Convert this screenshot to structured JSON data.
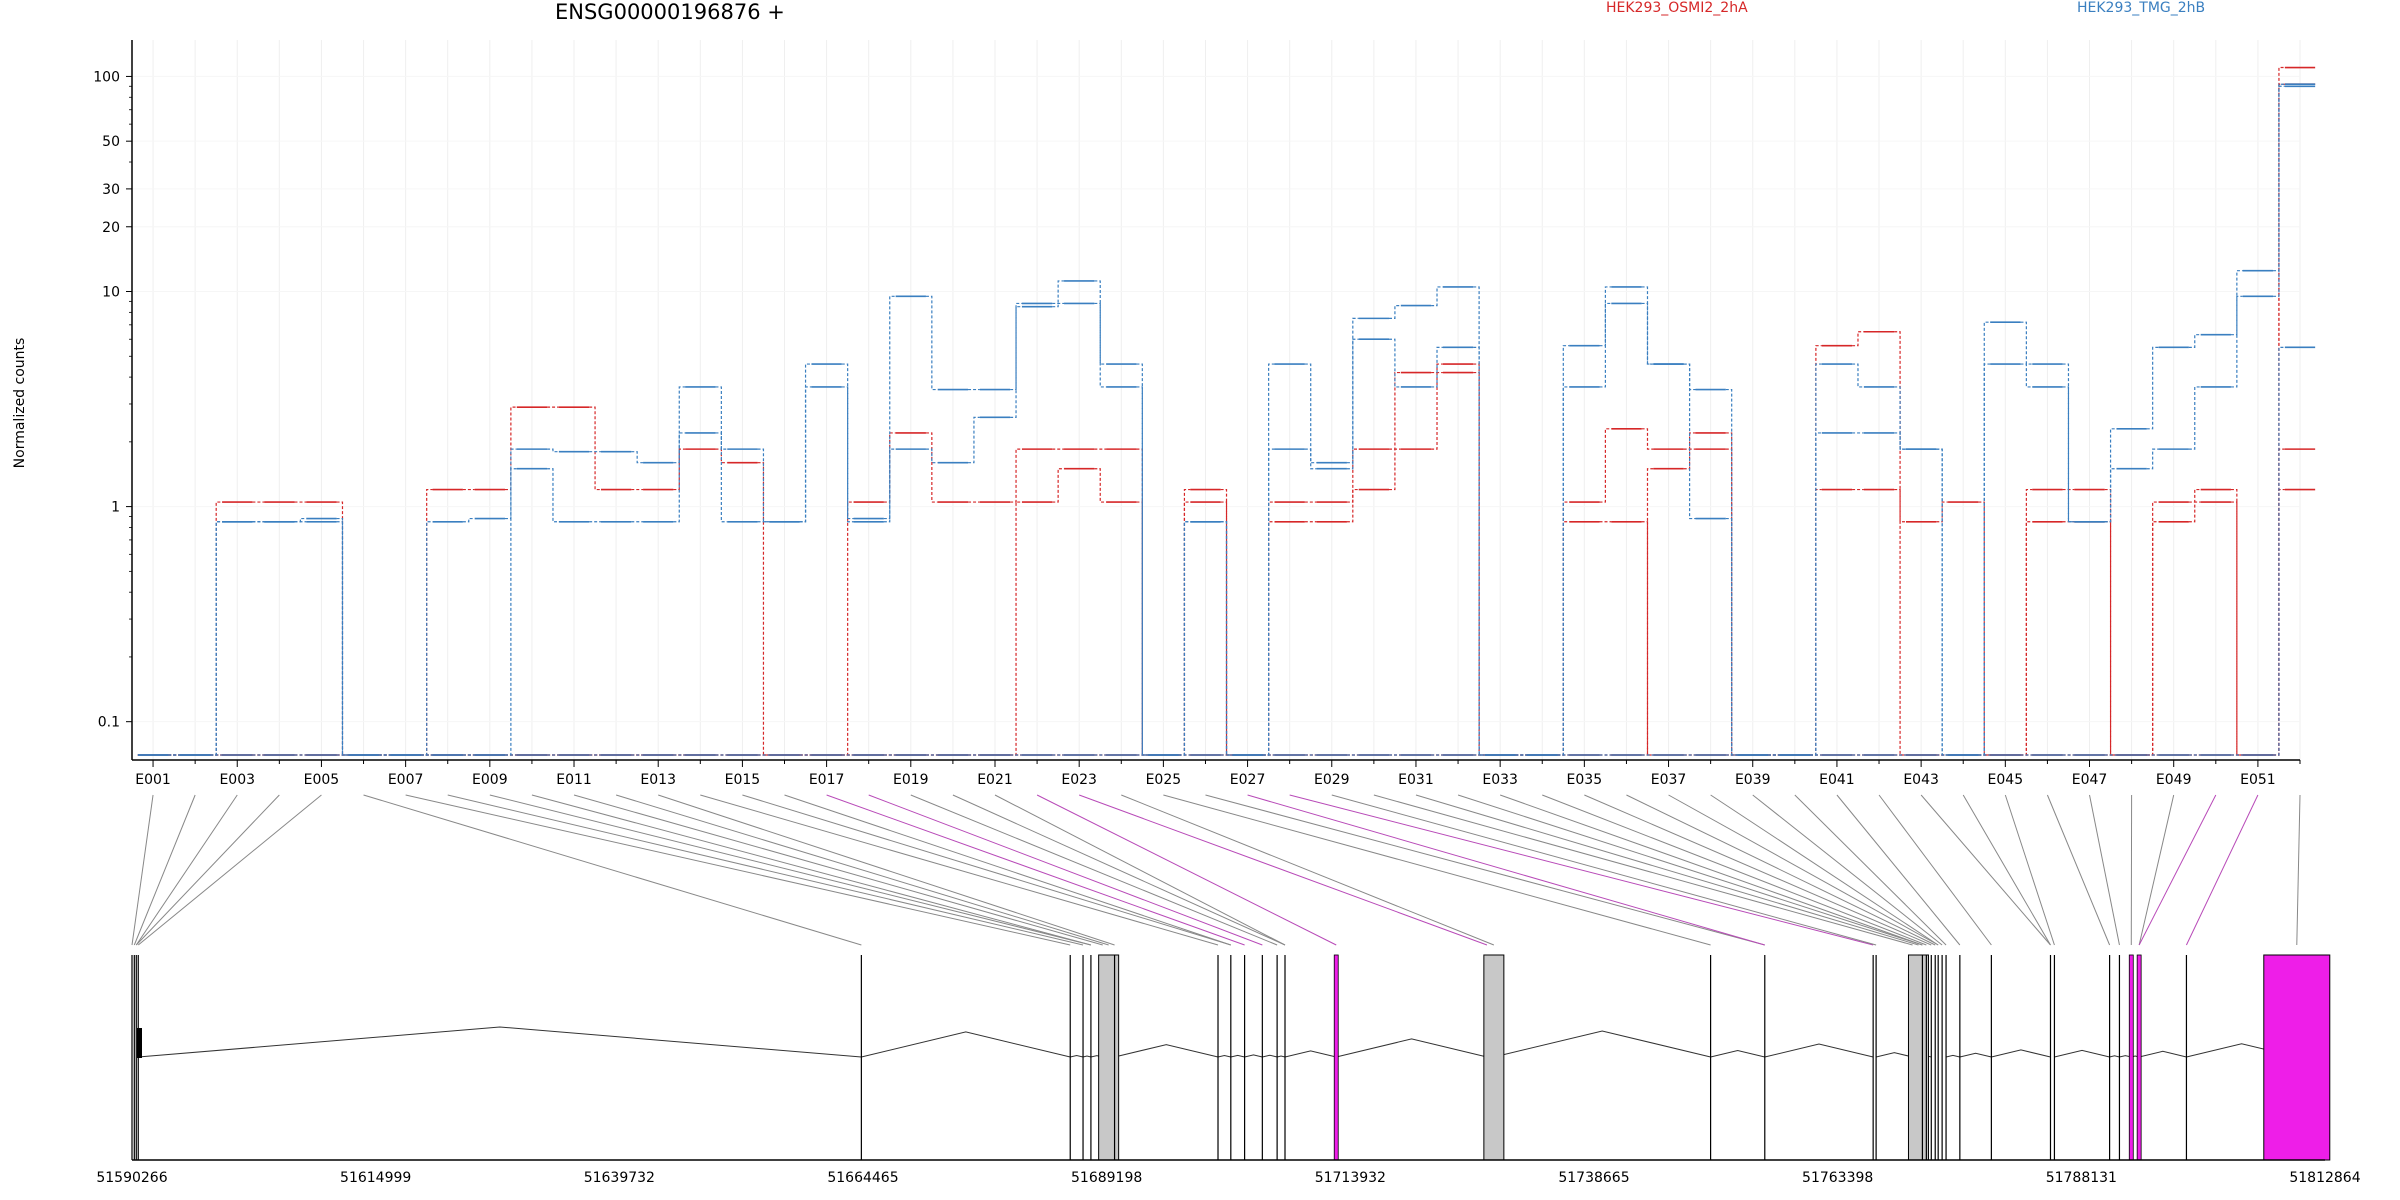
{
  "title": "ENSG00000196876 +",
  "legend": [
    {
      "label": "HEK293_OSMI2_2hA",
      "color": "#d62728"
    },
    {
      "label": "HEK293_TMG_2hB",
      "color": "#3a7fc0"
    }
  ],
  "highlight_color": "#ee1ee8",
  "chart_data": [
    {
      "type": "line",
      "title": "ENSG00000196876 +",
      "ylabel": "Normalized counts",
      "yscale": "log",
      "ylim": [
        0.07,
        140
      ],
      "yticks": [
        0.1,
        1,
        10,
        20,
        30,
        50,
        100
      ],
      "ytick_labels": [
        "0.1",
        "1",
        "10",
        "20",
        "30",
        "50",
        "100"
      ],
      "xtick_labels": [
        "E001",
        "E003",
        "E005",
        "E007",
        "E009",
        "E011",
        "E013",
        "E015",
        "E017",
        "E019",
        "E021",
        "E023",
        "E025",
        "E027",
        "E029",
        "E031",
        "E033",
        "E035",
        "E037",
        "E039",
        "E041",
        "E043",
        "E045",
        "E047",
        "E049",
        "E051"
      ],
      "exons": [
        "E001",
        "E002",
        "E003",
        "E004",
        "E005",
        "E006",
        "E007",
        "E008",
        "E009",
        "E010",
        "E011",
        "E012",
        "E013",
        "E014",
        "E015",
        "E016",
        "E017",
        "E018",
        "E019",
        "E020",
        "E021",
        "E022",
        "E023",
        "E024",
        "E025",
        "E026",
        "E027",
        "E028",
        "E029",
        "E030",
        "E031",
        "E032",
        "E033",
        "E034",
        "E035",
        "E036",
        "E037",
        "E038",
        "E039",
        "E040",
        "E041",
        "E042",
        "E043",
        "E044",
        "E045",
        "E046",
        "E047",
        "E048",
        "E049",
        "E050",
        "E051",
        "E052"
      ],
      "grid": true,
      "series": [
        {
          "name": "HEK293_OSMI2_2hA",
          "color": "#d62728",
          "values": [
            0.07,
            0.07,
            1.05,
            1.05,
            1.05,
            0.07,
            0.07,
            0.07,
            0.07,
            0.07,
            0.07,
            0.07,
            0.07,
            0.07,
            0.07,
            0.07,
            0.07,
            0.07,
            0.07,
            0.07,
            0.07,
            0.07,
            0.07,
            0.07,
            0.07,
            0.07,
            0.07,
            0.07,
            0.07,
            0.07,
            0.07,
            0.07,
            0.07,
            0.07,
            0.85,
            0.85,
            0.07,
            0.07,
            0.07,
            0.07,
            0.07,
            0.07,
            0.07,
            0.07,
            0.07,
            0.07,
            0.07,
            0.07,
            0.07,
            0.07,
            0.07,
            110
          ]
        },
        {
          "name": "HEK293_OSMI2_2hA",
          "color": "#d62728",
          "values": [
            0.07,
            0.07,
            0.07,
            0.07,
            0.07,
            0.07,
            0.07,
            1.2,
            1.2,
            2.9,
            2.9,
            1.2,
            1.2,
            1.85,
            1.6,
            0.07,
            0.07,
            1.05,
            2.2,
            1.05,
            1.05,
            1.85,
            1.85,
            1.85,
            0.07,
            1.2,
            0.07,
            1.05,
            1.05,
            1.85,
            1.85,
            4.6,
            0.07,
            0.07,
            1.05,
            2.3,
            1.85,
            1.85,
            0.07,
            0.07,
            1.2,
            1.2,
            0.85,
            1.05,
            0.07,
            1.2,
            1.2,
            0.07,
            1.05,
            1.2,
            0.07,
            1.85
          ]
        },
        {
          "name": "HEK293_OSMI2_2hA",
          "color": "#d62728",
          "values": [
            0.07,
            0.07,
            0.07,
            0.07,
            0.07,
            0.07,
            0.07,
            0.07,
            0.07,
            0.07,
            0.07,
            0.07,
            0.07,
            0.07,
            0.07,
            0.07,
            0.07,
            0.07,
            0.07,
            0.07,
            0.07,
            1.05,
            1.5,
            1.05,
            0.07,
            1.05,
            0.07,
            0.85,
            0.85,
            1.2,
            4.2,
            4.2,
            0.07,
            0.07,
            0.07,
            0.07,
            1.5,
            2.2,
            0.07,
            0.07,
            5.6,
            6.5,
            0.07,
            0.07,
            0.07,
            0.85,
            0.85,
            0.07,
            0.85,
            1.05,
            0.07,
            1.2
          ]
        },
        {
          "name": "HEK293_OSMI2_2hA",
          "color": "#d62728",
          "values": [
            0.07,
            0.07,
            0.07,
            0.07,
            0.07,
            0.07,
            0.07,
            0.07,
            0.07,
            0.07,
            0.07,
            0.07,
            0.07,
            0.07,
            0.07,
            0.07,
            0.07,
            0.07,
            0.07,
            0.07,
            0.07,
            0.07,
            0.07,
            0.07,
            0.07,
            0.07,
            0.07,
            0.07,
            0.07,
            0.07,
            0.07,
            0.07,
            0.07,
            0.07,
            0.07,
            0.07,
            0.07,
            0.07,
            0.07,
            0.07,
            0.07,
            0.07,
            0.07,
            0.07,
            0.07,
            0.07,
            0.07,
            0.07,
            0.07,
            0.07,
            0.07,
            92
          ]
        },
        {
          "name": "HEK293_TMG_2hB",
          "color": "#3a7fc0",
          "values": [
            0.07,
            0.07,
            0.85,
            0.85,
            0.88,
            0.07,
            0.07,
            0.85,
            0.88,
            1.85,
            1.8,
            1.8,
            1.6,
            3.6,
            1.85,
            0.85,
            4.6,
            0.88,
            9.5,
            3.5,
            3.5,
            8.5,
            11.2,
            4.6,
            0.07,
            0.85,
            0.07,
            4.6,
            1.6,
            7.5,
            8.6,
            10.5,
            0.07,
            0.07,
            3.6,
            10.5,
            4.6,
            3.5,
            0.07,
            0.07,
            2.2,
            2.2,
            1.85,
            0.07,
            7.2,
            4.6,
            0.85,
            2.3,
            5.5,
            6.3,
            12.5,
            90
          ]
        },
        {
          "name": "HEK293_TMG_2hB",
          "color": "#3a7fc0",
          "values": [
            0.07,
            0.07,
            0.85,
            0.85,
            0.85,
            0.07,
            0.07,
            0.07,
            0.07,
            1.5,
            0.85,
            0.85,
            0.85,
            2.2,
            0.85,
            0.85,
            3.6,
            0.85,
            1.85,
            1.6,
            2.6,
            8.8,
            8.8,
            3.6,
            0.07,
            0.85,
            0.07,
            1.85,
            1.5,
            6.0,
            3.6,
            5.5,
            0.07,
            0.07,
            5.6,
            8.8,
            4.6,
            0.88,
            0.07,
            0.07,
            4.6,
            3.6,
            1.85,
            0.07,
            4.6,
            3.6,
            0.85,
            1.5,
            1.85,
            3.6,
            9.5,
            92
          ]
        },
        {
          "name": "HEK293_TMG_2hB",
          "color": "#3a7fc0",
          "values": [
            0.07,
            0.07,
            0.07,
            0.07,
            0.07,
            0.07,
            0.07,
            0.07,
            0.07,
            0.07,
            0.07,
            0.07,
            0.07,
            0.07,
            0.07,
            0.07,
            0.07,
            0.07,
            0.07,
            0.07,
            0.07,
            0.07,
            0.07,
            0.07,
            0.07,
            0.07,
            0.07,
            0.07,
            0.07,
            0.07,
            0.07,
            0.07,
            0.07,
            0.07,
            0.07,
            0.07,
            0.07,
            0.07,
            0.07,
            0.07,
            0.07,
            0.07,
            0.07,
            0.07,
            0.07,
            0.07,
            0.07,
            0.07,
            0.07,
            0.07,
            0.07,
            5.5
          ]
        }
      ]
    },
    {
      "type": "gene_model",
      "xlim": [
        51590266,
        51812864
      ],
      "xticks": [
        51590266,
        51614999,
        51639732,
        51664465,
        51689198,
        51713932,
        51738665,
        51763398,
        51788131,
        51812864
      ],
      "xtick_labels": [
        "51590266",
        "51614999",
        "51639732",
        "51664465",
        "51689198",
        "51713932",
        "51738665",
        "51763398",
        "51788131",
        "51812864"
      ],
      "exon_coordinates": [
        51590266,
        51590500,
        51590700,
        51590900,
        51664300,
        51685500,
        51686800,
        51687600,
        51688800,
        51689400,
        51690000,
        51700500,
        51701800,
        51703200,
        51705000,
        51706500,
        51707300,
        51712500,
        51727800,
        51728500,
        51750500,
        51756000,
        51767000,
        51767300,
        51771000,
        51771600,
        51772000,
        51772400,
        51772900,
        51773300,
        51773600,
        51774000,
        51774400,
        51775800,
        51779000,
        51785000,
        51785400,
        51791000,
        51792000,
        51793200,
        51794000,
        51798800,
        51810000
      ],
      "feature_types": {
        "plain": "exonic part",
        "grey": "gray",
        "highlight": "magenta"
      }
    }
  ]
}
